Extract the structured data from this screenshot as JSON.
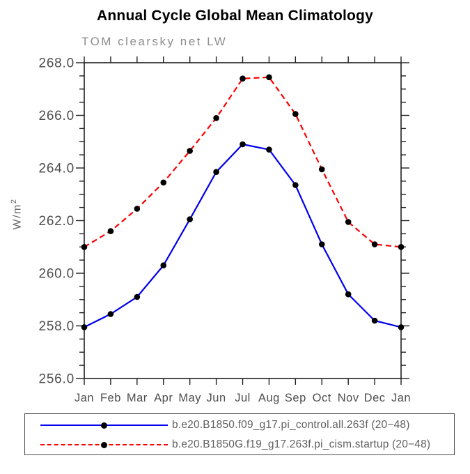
{
  "title": "Annual Cycle Global Mean Climatology",
  "subtitle": "TOM clearsky net LW",
  "ylabel": "W/m²",
  "colors": {
    "axis": "#1f1f1f",
    "tick_label": "#4d4d4d",
    "subtitle_gray": "#8c8c8c",
    "series_blue": "#0000ee",
    "series_red": "#fb0000",
    "marker_black": "#000000"
  },
  "chart_data": {
    "type": "line",
    "title": "Annual Cycle Global Mean Climatology",
    "subtitle": "TOM clearsky net LW",
    "xlabel": "",
    "ylabel": "W/m²",
    "categories": [
      "Jan",
      "Feb",
      "Mar",
      "Apr",
      "May",
      "Jun",
      "Jul",
      "Aug",
      "Sep",
      "Oct",
      "Nov",
      "Dec",
      "Jan"
    ],
    "ylim": [
      256.0,
      268.0
    ],
    "yticks": [
      {
        "value": 268.0,
        "label": "268.0"
      },
      {
        "value": 266.0,
        "label": "266.0"
      },
      {
        "value": 264.0,
        "label": "264.0"
      },
      {
        "value": 262.0,
        "label": "262.0"
      },
      {
        "value": 260.0,
        "label": "260.0"
      },
      {
        "value": 258.0,
        "label": "258.0"
      },
      {
        "value": 256.0,
        "label": "256.0"
      }
    ],
    "yminor_step": 0.5,
    "grid": false,
    "legend_position": "bottom",
    "marker": "filled-black-circle",
    "series": [
      {
        "name": "b.e20.B1850.f09_g17.pi_control.all.263f (20−48)",
        "color": "#0000ee",
        "line_style": "solid",
        "values": [
          257.95,
          258.45,
          259.1,
          260.3,
          262.05,
          263.85,
          264.9,
          264.7,
          263.35,
          261.1,
          259.2,
          258.2,
          257.95
        ]
      },
      {
        "name": "b.e20.B1850G.f19_g17.263f.pi_cism.startup (20−48)",
        "color": "#fb0000",
        "line_style": "dashed",
        "values": [
          261.0,
          261.6,
          262.45,
          263.45,
          264.65,
          265.9,
          267.4,
          267.45,
          266.05,
          263.95,
          261.95,
          261.1,
          261.0
        ]
      }
    ]
  }
}
